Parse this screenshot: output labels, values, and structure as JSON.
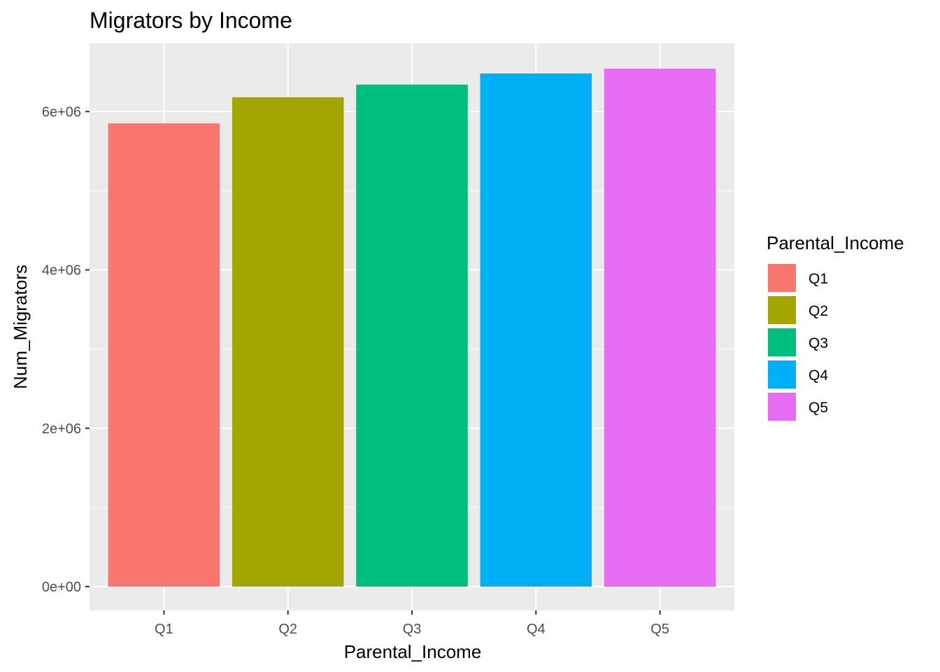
{
  "chart_data": {
    "type": "bar",
    "title": "Migrators by Income",
    "xlabel": "Parental_Income",
    "ylabel": "Num_Migrators",
    "categories": [
      "Q1",
      "Q2",
      "Q3",
      "Q4",
      "Q5"
    ],
    "values": [
      5850000,
      6180000,
      6340000,
      6480000,
      6540000
    ],
    "colors": [
      "#F8766D",
      "#A3A500",
      "#00BF7D",
      "#00B0F6",
      "#E76BF3"
    ],
    "ylim": [
      -300000,
      6860000
    ],
    "yticks": [
      0,
      2000000,
      4000000,
      6000000
    ],
    "ytick_labels": [
      "0e+00",
      "2e+06",
      "4e+06",
      "6e+06"
    ],
    "grid": true,
    "panel_background": "#EBEBEB",
    "gridline_color": "#FFFFFF",
    "legend": {
      "title": "Parental_Income",
      "position": "right",
      "entries": [
        "Q1",
        "Q2",
        "Q3",
        "Q4",
        "Q5"
      ]
    }
  }
}
